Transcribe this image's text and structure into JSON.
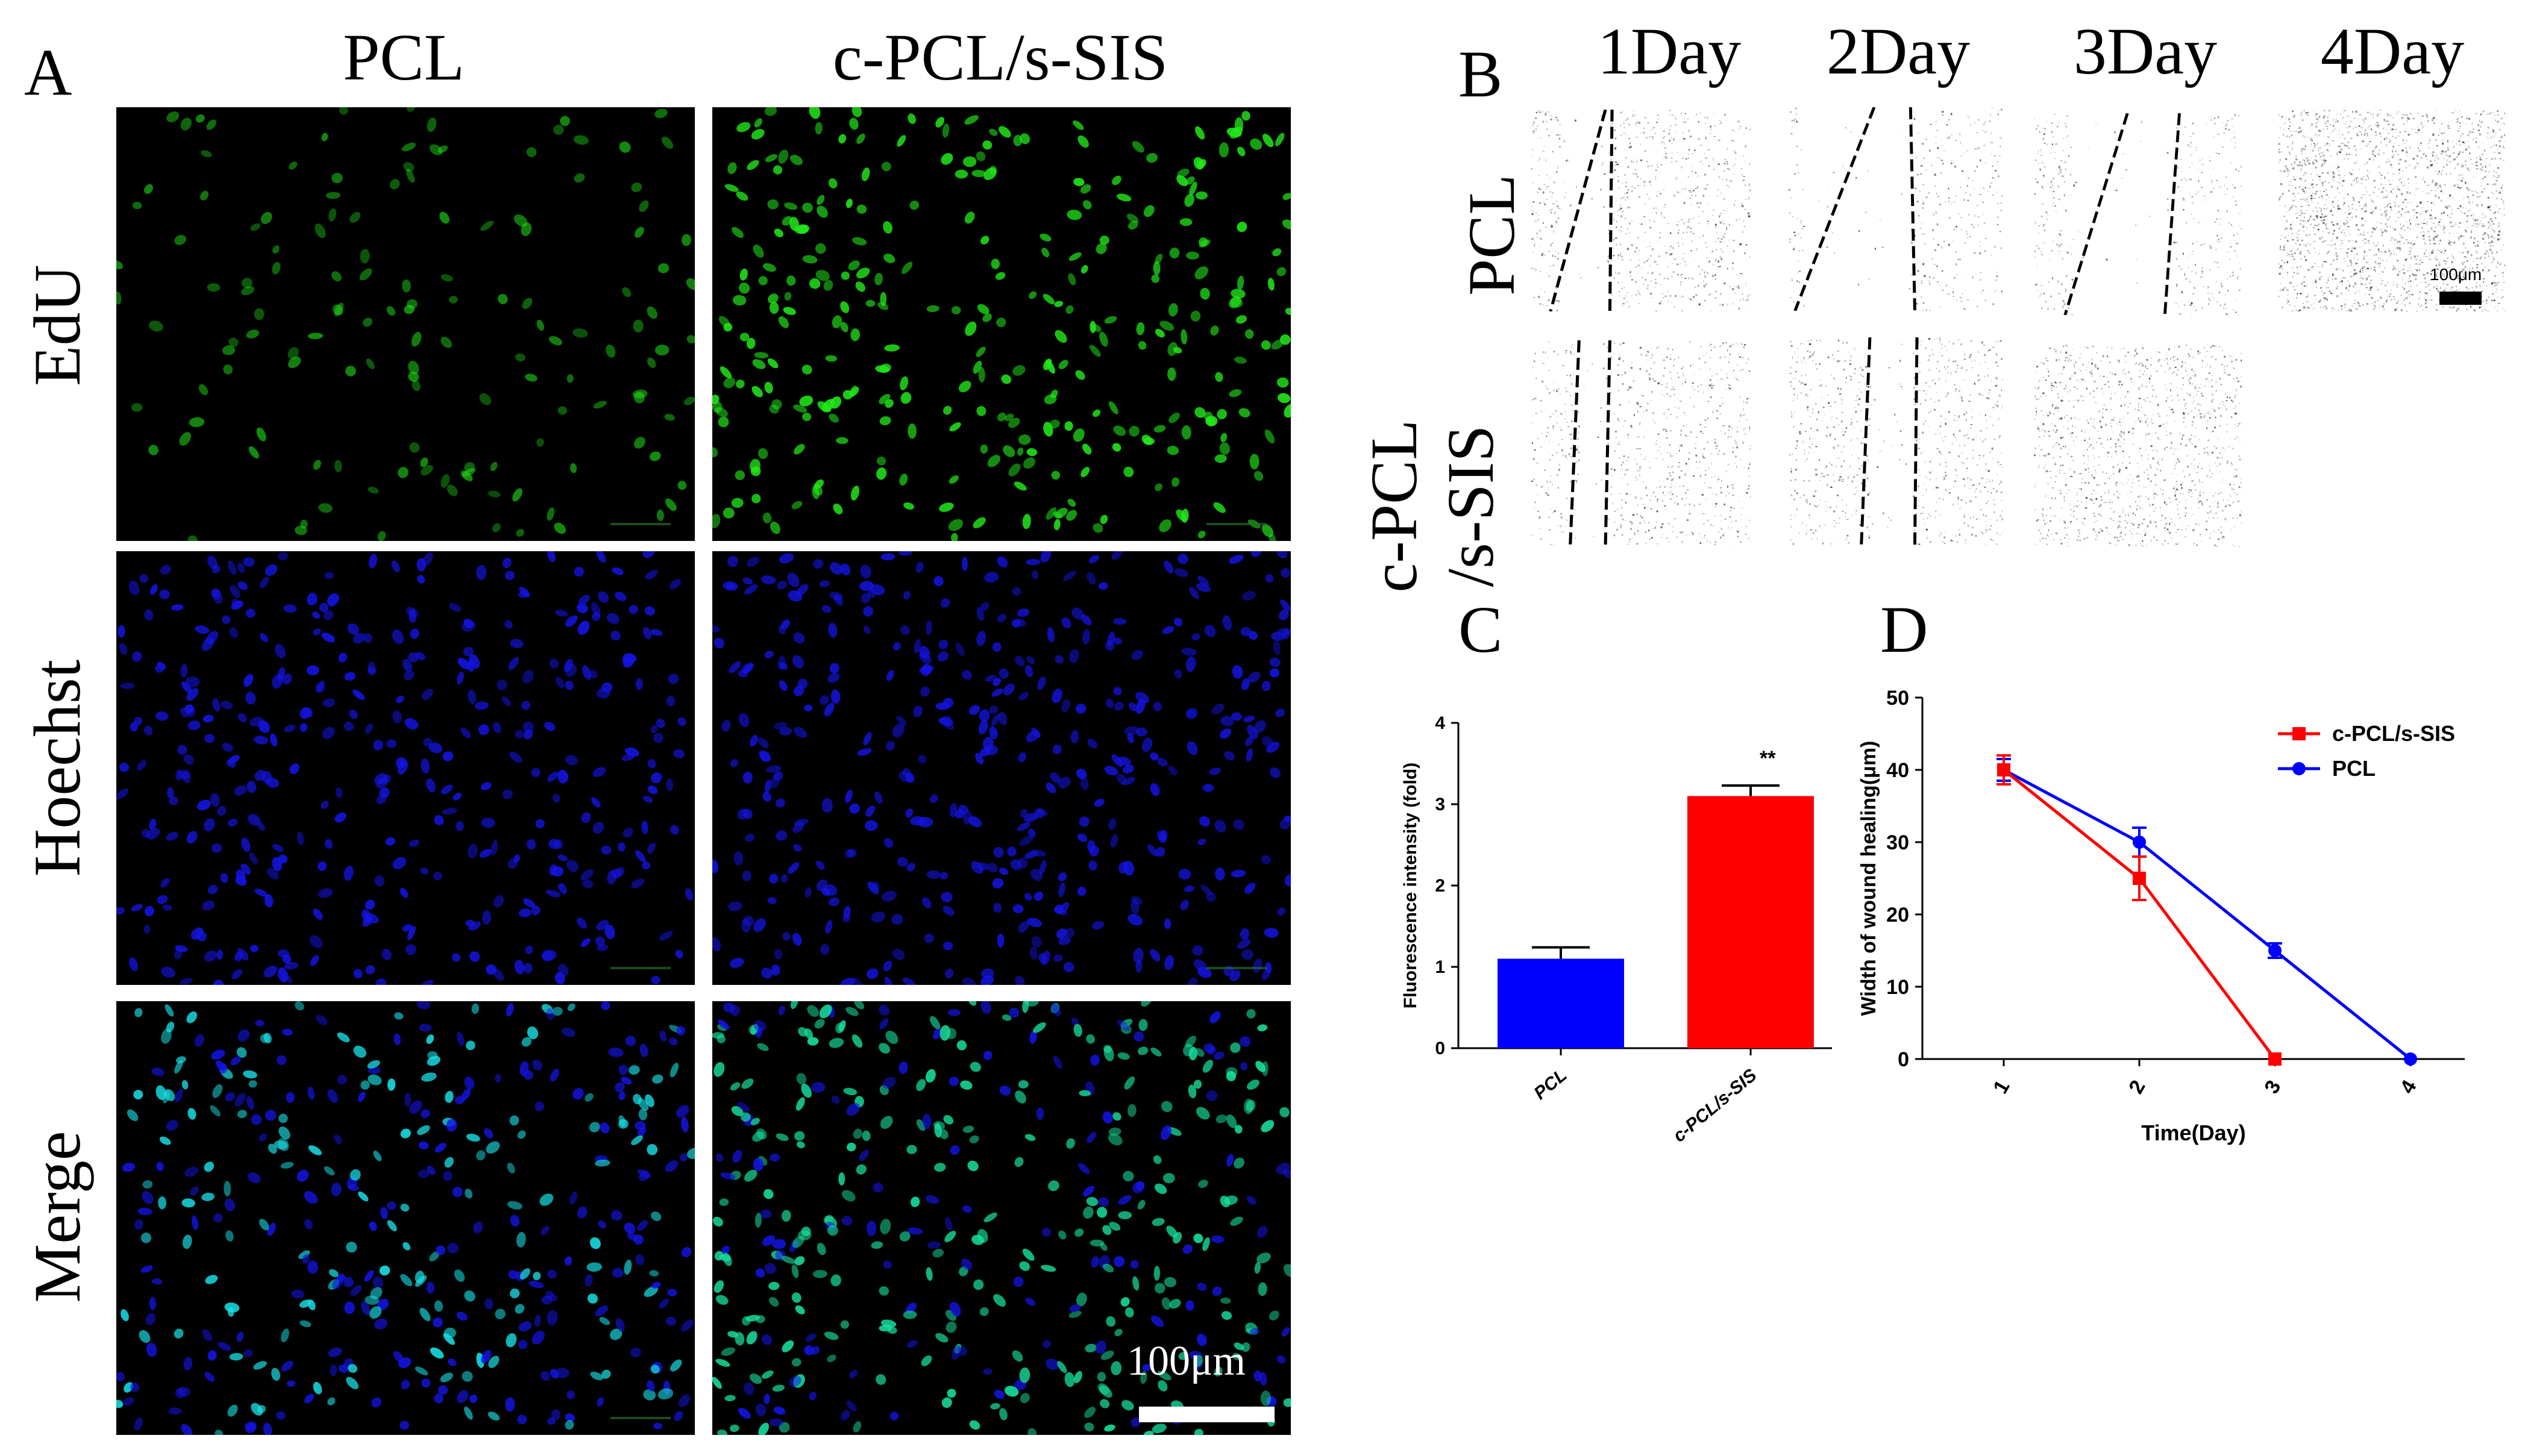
{
  "panel_a": {
    "letter": "A",
    "columns": [
      "PCL",
      "c-PCL/s-SIS"
    ],
    "rows": [
      "EdU",
      "Hoechst",
      "Merge"
    ],
    "scale_bar_label": "100μm"
  },
  "panel_b": {
    "letter": "B",
    "columns": [
      "1Day",
      "2Day",
      "3Day",
      "4Day"
    ],
    "row_pcl": "PCL",
    "row_cpcl_line1": "c-PCL",
    "row_cpcl_line2": "/s-SIS",
    "scale_bar_label": "100μm"
  },
  "panel_c": {
    "letter": "C",
    "significance": "**"
  },
  "panel_d": {
    "letter": "D"
  },
  "colors": {
    "edu_green": "#22e81a",
    "hoechst_blue": "#1414e6",
    "merge_cyan": "#19e0e6",
    "merge_teal": "#18e0a0",
    "bar_blue": "#0000ff",
    "bar_red": "#ff0000"
  },
  "chart_data": [
    {
      "type": "bar",
      "categories": [
        "PCL",
        "c-PCL/s-SIS"
      ],
      "values": [
        1.1,
        3.1
      ],
      "errors": [
        0.14,
        0.13
      ],
      "bar_colors": [
        "#0000ff",
        "#ff0000"
      ],
      "title": "",
      "xlabel": "",
      "ylabel": "Fluorescence intensity (fold)",
      "ylim": [
        0,
        4
      ],
      "yticks": [
        0,
        1,
        2,
        3,
        4
      ],
      "grid": false
    },
    {
      "type": "line",
      "x": [
        1,
        2,
        3,
        4
      ],
      "xticks": [
        "1",
        "2",
        "3",
        "4"
      ],
      "series": [
        {
          "name": "c-PCL/s-SIS",
          "color": "#ff0000",
          "marker": "square",
          "x": [
            1,
            2,
            3
          ],
          "values": [
            40,
            25,
            0
          ],
          "errors": [
            2,
            3,
            0
          ]
        },
        {
          "name": "PCL",
          "color": "#0000ff",
          "marker": "circle",
          "x": [
            1,
            2,
            3,
            4
          ],
          "values": [
            40,
            30,
            15,
            0
          ],
          "errors": [
            1.5,
            2,
            1,
            0
          ]
        }
      ],
      "title": "",
      "xlabel": "Time(Day)",
      "ylabel": "Width of wound healing(μm)",
      "ylim": [
        0,
        50
      ],
      "yticks": [
        0,
        10,
        20,
        30,
        40,
        50
      ],
      "legend_position": "top-right",
      "grid": false
    }
  ]
}
